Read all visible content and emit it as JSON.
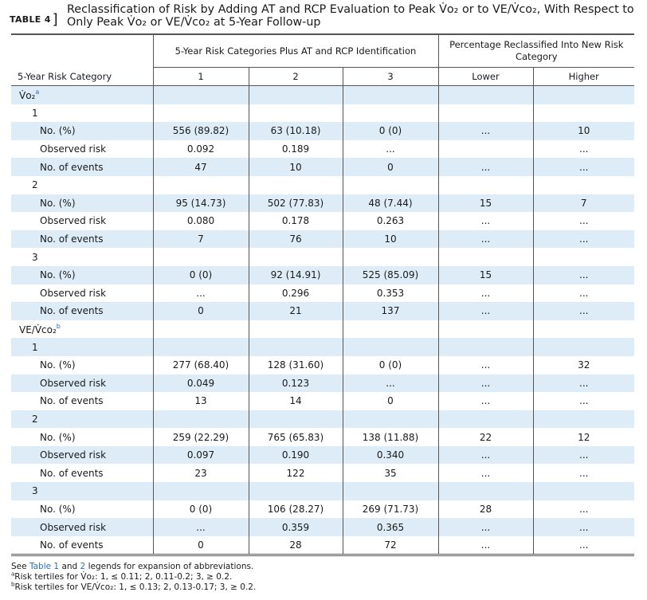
{
  "title": {
    "label": "TABLE 4",
    "bracket": "]",
    "text": "Reclassification of Risk by Adding AT and RCP Evaluation to Peak V̇o₂ or to VE/V̇co₂, With Respect to Only Peak V̇o₂ or VE/V̇co₂ at 5-Year Follow-up"
  },
  "header": {
    "group1": "5-Year Risk Categories Plus AT and RCP Identification",
    "group2": "Percentage Reclassified Into New Risk Category",
    "stub": "5-Year Risk Category",
    "cols": [
      "1",
      "2",
      "3",
      "Lower",
      "Higher"
    ]
  },
  "rows": [
    {
      "label": "V̇o₂",
      "sup": "a",
      "level": 1,
      "shade": true,
      "cells": [
        "",
        "",
        "",
        "",
        ""
      ]
    },
    {
      "label": "1",
      "level": 2,
      "shade": false,
      "cells": [
        "",
        "",
        "",
        "",
        ""
      ]
    },
    {
      "label": "No. (%)",
      "level": 3,
      "shade": true,
      "cells": [
        "556 (89.82)",
        "63 (10.18)",
        "0 (0)",
        "...",
        "10"
      ]
    },
    {
      "label": "Observed risk",
      "level": 3,
      "shade": false,
      "cells": [
        "0.092",
        "0.189",
        "...",
        "",
        "..."
      ]
    },
    {
      "label": "No. of events",
      "level": 3,
      "shade": true,
      "cells": [
        "47",
        "10",
        "0",
        "...",
        "..."
      ]
    },
    {
      "label": "2",
      "level": 2,
      "shade": false,
      "cells": [
        "",
        "",
        "",
        "",
        ""
      ]
    },
    {
      "label": "No. (%)",
      "level": 3,
      "shade": true,
      "cells": [
        "95 (14.73)",
        "502 (77.83)",
        "48 (7.44)",
        "15",
        "7"
      ]
    },
    {
      "label": "Observed risk",
      "level": 3,
      "shade": false,
      "cells": [
        "0.080",
        "0.178",
        "0.263",
        "...",
        "..."
      ]
    },
    {
      "label": "No. of events",
      "level": 3,
      "shade": true,
      "cells": [
        "7",
        "76",
        "10",
        "...",
        "..."
      ]
    },
    {
      "label": "3",
      "level": 2,
      "shade": false,
      "cells": [
        "",
        "",
        "",
        "",
        ""
      ]
    },
    {
      "label": "No. (%)",
      "level": 3,
      "shade": true,
      "cells": [
        "0 (0)",
        "92 (14.91)",
        "525 (85.09)",
        "15",
        "..."
      ]
    },
    {
      "label": "Observed risk",
      "level": 3,
      "shade": false,
      "cells": [
        "...",
        "0.296",
        "0.353",
        "...",
        "..."
      ]
    },
    {
      "label": "No. of events",
      "level": 3,
      "shade": true,
      "cells": [
        "0",
        "21",
        "137",
        "...",
        "..."
      ]
    },
    {
      "label": "VE/V̇co₂",
      "sup": "b",
      "level": 1,
      "shade": false,
      "cells": [
        "",
        "",
        "",
        "",
        ""
      ]
    },
    {
      "label": "1",
      "level": 2,
      "shade": true,
      "cells": [
        "",
        "",
        "",
        "",
        ""
      ]
    },
    {
      "label": "No. (%)",
      "level": 3,
      "shade": false,
      "cells": [
        "277 (68.40)",
        "128 (31.60)",
        "0 (0)",
        "...",
        "32"
      ]
    },
    {
      "label": "Observed risk",
      "level": 3,
      "shade": true,
      "cells": [
        "0.049",
        "0.123",
        "...",
        "...",
        "..."
      ]
    },
    {
      "label": "No. of events",
      "level": 3,
      "shade": false,
      "cells": [
        "13",
        "14",
        "0",
        "...",
        "..."
      ]
    },
    {
      "label": "2",
      "level": 2,
      "shade": true,
      "cells": [
        "",
        "",
        "",
        "",
        ""
      ]
    },
    {
      "label": "No. (%)",
      "level": 3,
      "shade": false,
      "cells": [
        "259 (22.29)",
        "765 (65.83)",
        "138 (11.88)",
        "22",
        "12"
      ]
    },
    {
      "label": "Observed risk",
      "level": 3,
      "shade": true,
      "cells": [
        "0.097",
        "0.190",
        "0.340",
        "...",
        "..."
      ]
    },
    {
      "label": "No. of events",
      "level": 3,
      "shade": false,
      "cells": [
        "23",
        "122",
        "35",
        "...",
        "..."
      ]
    },
    {
      "label": "3",
      "level": 2,
      "shade": true,
      "cells": [
        "",
        "",
        "",
        "",
        ""
      ]
    },
    {
      "label": "No. (%)",
      "level": 3,
      "shade": false,
      "cells": [
        "0 (0)",
        "106 (28.27)",
        "269 (71.73)",
        "28",
        "..."
      ]
    },
    {
      "label": "Observed risk",
      "level": 3,
      "shade": true,
      "cells": [
        "...",
        "0.359",
        "0.365",
        "...",
        "..."
      ]
    },
    {
      "label": "No. of events",
      "level": 3,
      "shade": false,
      "cells": [
        "0",
        "28",
        "72",
        "...",
        "..."
      ]
    }
  ],
  "notes": {
    "line1_pre": "See ",
    "line1_link1": "Table 1",
    "line1_mid": " and ",
    "line1_link2": "2",
    "line1_post": " legends for expansion of abbreviations.",
    "line2_sup": "a",
    "line2": "Risk tertiles for V̇o₂: 1, ≤ 0.11; 2, 0.11-0.2; 3, ≥ 0.2.",
    "line3_sup": "b",
    "line3": "Risk tertiles for VE/V̇co₂: 1, ≤ 0.13; 2, 0.13-0.17; 3, ≥ 0.2."
  },
  "colors": {
    "shade": "#ddecf6",
    "link": "#2a6fb5",
    "rule": "#555555"
  }
}
